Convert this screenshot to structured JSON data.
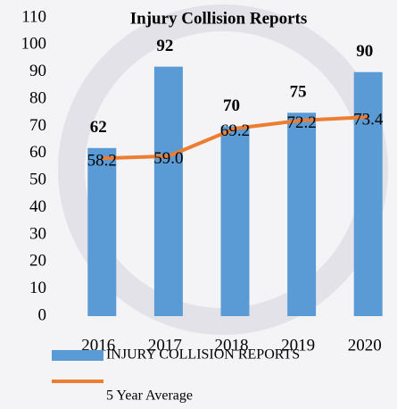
{
  "chart_data": {
    "type": "bar",
    "title": "Injury Collision Reports",
    "categories": [
      "2016",
      "2017",
      "2018",
      "2019",
      "2020"
    ],
    "series": [
      {
        "name": "INJURY COLLISION REPORTS",
        "type": "bar",
        "color": "#5b9bd5",
        "values": [
          62,
          92,
          70,
          75,
          90
        ]
      },
      {
        "name": "5 Year Average",
        "type": "line",
        "color": "#ed7d31",
        "values": [
          58.2,
          59.0,
          69.2,
          72.2,
          73.4
        ],
        "value_labels": [
          "58.2",
          "59.0",
          "69.2",
          "72.2",
          "73.4"
        ]
      }
    ],
    "ylim": [
      0,
      110
    ],
    "yticks": [
      0,
      10,
      20,
      30,
      40,
      50,
      60,
      70,
      80,
      90,
      100,
      110
    ],
    "grid": false,
    "legend": "bottom"
  }
}
